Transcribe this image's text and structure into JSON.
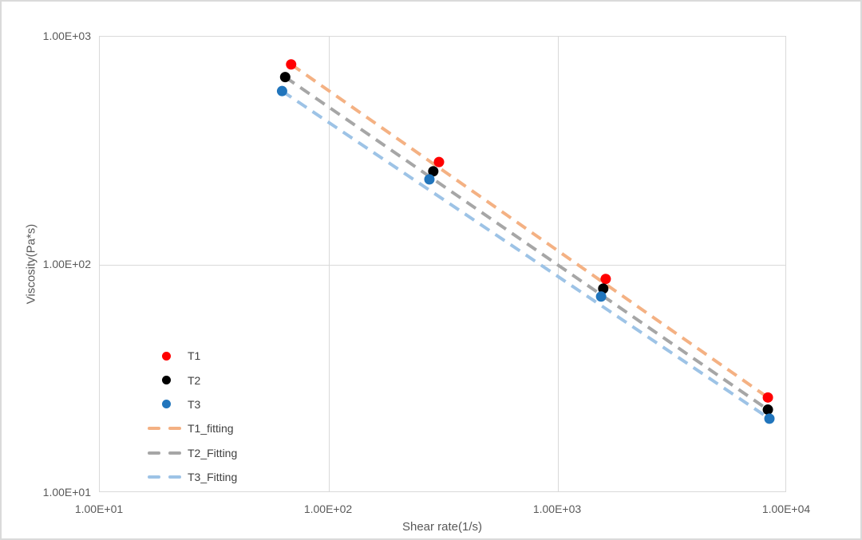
{
  "chart_data": {
    "type": "scatter",
    "title": "",
    "xlabel": "Shear rate(1/s)",
    "ylabel": "Viscosity(Pa*s)",
    "x_scale": "log",
    "y_scale": "log",
    "xlim": [
      10,
      10000
    ],
    "ylim": [
      10,
      1000
    ],
    "x_ticks": [
      "1.00E+01",
      "1.00E+02",
      "1.00E+03",
      "1.00E+04"
    ],
    "y_ticks": [
      "1.00E+03",
      "1.00E+02",
      "1.00E+01"
    ],
    "grid": "major-decades-only",
    "legend_position": "inside-lower-left",
    "series": [
      {
        "name": "T1",
        "kind": "scatter",
        "color": "#FF0000",
        "x": [
          69,
          305,
          1630,
          8320
        ],
        "y": [
          750,
          280,
          86,
          26
        ]
      },
      {
        "name": "T2",
        "kind": "scatter",
        "color": "#000000",
        "x": [
          65,
          288,
          1590,
          8320
        ],
        "y": [
          660,
          255,
          78,
          23
        ]
      },
      {
        "name": "T3",
        "kind": "scatter",
        "color": "#2175BC",
        "x": [
          63,
          277,
          1556,
          8450
        ],
        "y": [
          573,
          235,
          72,
          21
        ]
      },
      {
        "name": "T1_fitting",
        "kind": "dashed_fit_line",
        "color": "#F4B183",
        "x": [
          69,
          8320
        ],
        "y": [
          750,
          26
        ]
      },
      {
        "name": "T2_Fitting",
        "kind": "dashed_fit_line",
        "color": "#A6A6A6",
        "x": [
          65,
          8320
        ],
        "y": [
          660,
          23
        ]
      },
      {
        "name": "T3_Fitting",
        "kind": "dashed_fit_line",
        "color": "#9DC3E6",
        "x": [
          63,
          8450
        ],
        "y": [
          573,
          21
        ]
      }
    ]
  },
  "colors": {
    "background": "#FFFFFF",
    "plot_border": "#D9D9D9",
    "gridline": "#D9D9D9",
    "tick_text": "#595959",
    "axis_title_text": "#595959",
    "legend_text": "#404040"
  }
}
